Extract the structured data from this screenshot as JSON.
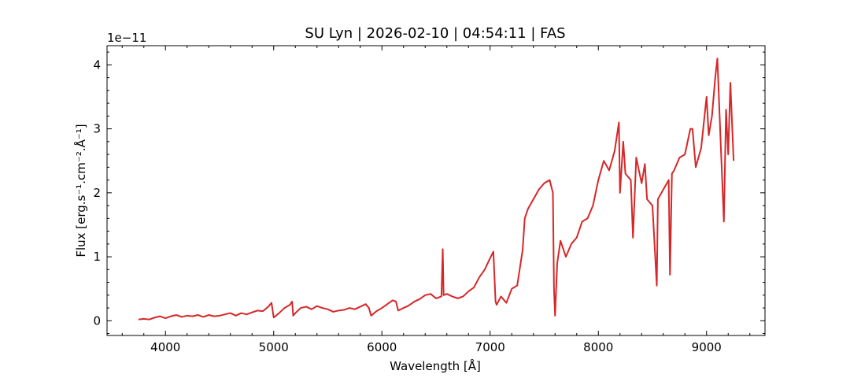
{
  "chart_data": {
    "type": "line",
    "title": "SU Lyn | 2026-02-10 | 04:54:11 | FAS",
    "xlabel": "Wavelength [Å]",
    "ylabel": "Flux [erg.s⁻¹.cm⁻².Å⁻¹]",
    "y_offset_label": "1e−11",
    "xlim": [
      3460,
      9540
    ],
    "ylim": [
      -0.23,
      4.3
    ],
    "x_ticks": [
      4000,
      5000,
      6000,
      7000,
      8000,
      9000
    ],
    "x_tick_labels": [
      "4000",
      "5000",
      "6000",
      "7000",
      "8000",
      "9000"
    ],
    "y_ticks": [
      0,
      1,
      2,
      3,
      4
    ],
    "y_tick_labels": [
      "0",
      "1",
      "2",
      "3",
      "4"
    ],
    "grid": false,
    "series": [
      {
        "color": "#d62728",
        "x": [
          3750,
          3800,
          3850,
          3900,
          3950,
          4000,
          4050,
          4100,
          4150,
          4200,
          4250,
          4300,
          4350,
          4400,
          4450,
          4500,
          4550,
          4600,
          4650,
          4700,
          4750,
          4800,
          4850,
          4900,
          4950,
          4980,
          5000,
          5050,
          5100,
          5150,
          5170,
          5180,
          5200,
          5250,
          5300,
          5350,
          5400,
          5450,
          5500,
          5550,
          5600,
          5650,
          5700,
          5750,
          5800,
          5850,
          5880,
          5900,
          5950,
          6000,
          6050,
          6100,
          6130,
          6150,
          6200,
          6250,
          6300,
          6350,
          6400,
          6450,
          6500,
          6550,
          6562,
          6570,
          6600,
          6650,
          6700,
          6750,
          6800,
          6850,
          6900,
          6950,
          7000,
          7030,
          7050,
          7060,
          7100,
          7150,
          7200,
          7250,
          7300,
          7320,
          7350,
          7400,
          7450,
          7500,
          7550,
          7580,
          7590,
          7600,
          7620,
          7650,
          7700,
          7750,
          7800,
          7850,
          7900,
          7950,
          8000,
          8050,
          8100,
          8150,
          8190,
          8200,
          8230,
          8250,
          8300,
          8320,
          8350,
          8400,
          8430,
          8450,
          8500,
          8540,
          8550,
          8600,
          8650,
          8662,
          8680,
          8700,
          8750,
          8800,
          8850,
          8870,
          8900,
          8950,
          9000,
          9020,
          9050,
          9080,
          9100,
          9130,
          9160,
          9180,
          9200,
          9220,
          9250
        ],
        "y": [
          0.02,
          0.03,
          0.02,
          0.05,
          0.07,
          0.04,
          0.07,
          0.09,
          0.06,
          0.08,
          0.07,
          0.09,
          0.06,
          0.09,
          0.07,
          0.08,
          0.1,
          0.12,
          0.08,
          0.12,
          0.1,
          0.13,
          0.16,
          0.15,
          0.22,
          0.28,
          0.05,
          0.12,
          0.2,
          0.25,
          0.3,
          0.08,
          0.12,
          0.2,
          0.22,
          0.18,
          0.23,
          0.2,
          0.18,
          0.14,
          0.16,
          0.17,
          0.2,
          0.18,
          0.22,
          0.26,
          0.2,
          0.08,
          0.15,
          0.2,
          0.26,
          0.32,
          0.3,
          0.16,
          0.2,
          0.24,
          0.3,
          0.34,
          0.4,
          0.42,
          0.35,
          0.38,
          1.12,
          0.4,
          0.42,
          0.38,
          0.35,
          0.38,
          0.46,
          0.52,
          0.68,
          0.8,
          0.98,
          1.08,
          0.3,
          0.25,
          0.38,
          0.28,
          0.5,
          0.55,
          1.1,
          1.6,
          1.75,
          1.9,
          2.05,
          2.15,
          2.2,
          2.0,
          0.5,
          0.08,
          0.9,
          1.25,
          1.0,
          1.2,
          1.3,
          1.55,
          1.6,
          1.8,
          2.2,
          2.5,
          2.35,
          2.65,
          3.1,
          2.0,
          2.8,
          2.3,
          2.2,
          1.3,
          2.55,
          2.15,
          2.45,
          1.9,
          1.8,
          0.55,
          1.9,
          2.05,
          2.2,
          0.72,
          2.3,
          2.35,
          2.55,
          2.6,
          3.0,
          3.0,
          2.4,
          2.7,
          3.5,
          2.9,
          3.2,
          3.8,
          4.1,
          2.8,
          1.55,
          3.3,
          2.6,
          3.72,
          2.5
        ]
      }
    ]
  }
}
